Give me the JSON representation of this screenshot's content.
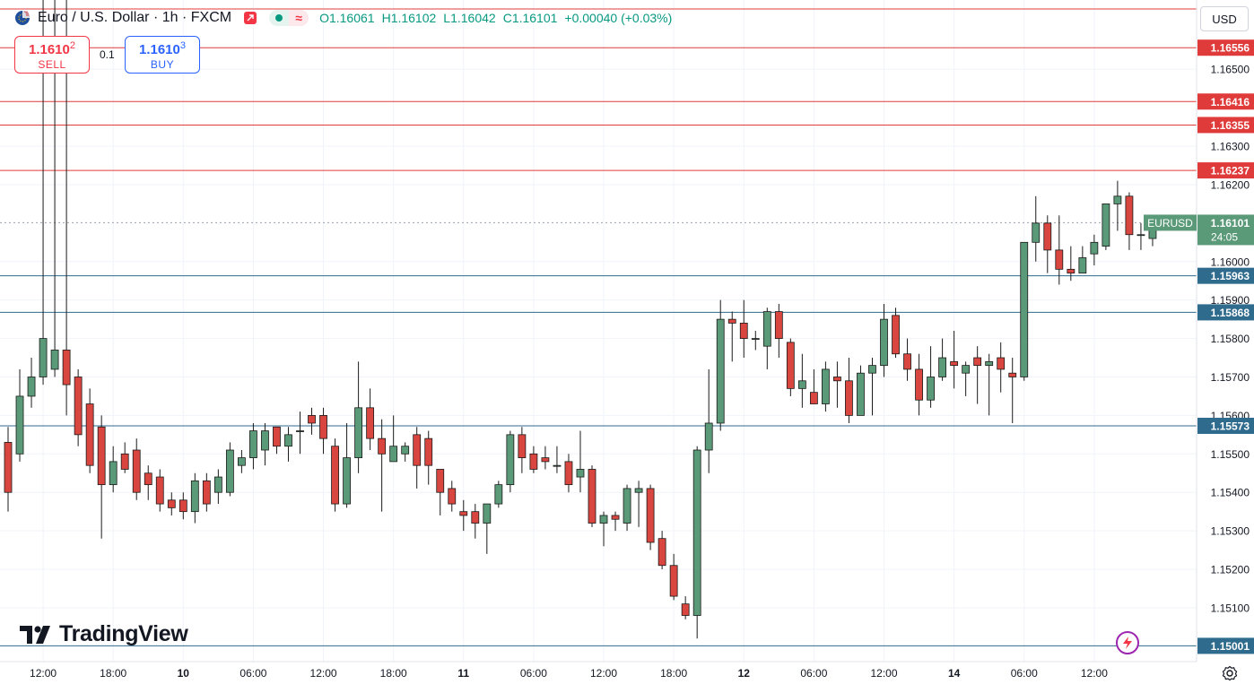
{
  "header": {
    "symbol": "Euro / U.S. Dollar",
    "interval": "1h",
    "exchange": "FXCM",
    "open": "O1.16061",
    "high": "H1.16102",
    "low": "L1.16042",
    "close": "C1.16101",
    "change": "+0.00040 (+0.03%)"
  },
  "trade": {
    "sell_price_main": "1.1610",
    "sell_price_sup": "2",
    "sell_label": "SELL",
    "spread": "0.1",
    "buy_price_main": "1.1610",
    "buy_price_sup": "3",
    "buy_label": "BUY"
  },
  "currency": "USD",
  "logo_text": "TradingView",
  "colors": {
    "up": "#5b9a78",
    "down": "#d9463f",
    "resistance": "#e03b3b",
    "support": "#2f6b8d",
    "grid": "#f0f3fa",
    "last_price": "#5b9a78"
  },
  "chart_data": {
    "type": "candlestick",
    "symbol_tag": "EURUSD",
    "last_price": 1.16101,
    "last_price_label": "1.16101",
    "countdown": "24:05",
    "y_range": [
      1.1496,
      1.1668
    ],
    "y_ticks": [
      "1.16500",
      "1.16300",
      "1.16200",
      "1.16000",
      "1.15900",
      "1.15800",
      "1.15700",
      "1.15600",
      "1.15500",
      "1.15400",
      "1.15300",
      "1.15200",
      "1.15100"
    ],
    "x_ticks": [
      {
        "label": "12:00",
        "bar": 3,
        "bold": false
      },
      {
        "label": "18:00",
        "bar": 9,
        "bold": false
      },
      {
        "label": "10",
        "bar": 15,
        "bold": true
      },
      {
        "label": "06:00",
        "bar": 21,
        "bold": false
      },
      {
        "label": "12:00",
        "bar": 27,
        "bold": false
      },
      {
        "label": "18:00",
        "bar": 33,
        "bold": false
      },
      {
        "label": "11",
        "bar": 39,
        "bold": true
      },
      {
        "label": "06:00",
        "bar": 45,
        "bold": false
      },
      {
        "label": "12:00",
        "bar": 51,
        "bold": false
      },
      {
        "label": "18:00",
        "bar": 57,
        "bold": false
      },
      {
        "label": "12",
        "bar": 63,
        "bold": true
      },
      {
        "label": "06:00",
        "bar": 69,
        "bold": false
      },
      {
        "label": "12:00",
        "bar": 75,
        "bold": false
      },
      {
        "label": "14",
        "bar": 81,
        "bold": true
      },
      {
        "label": "06:00",
        "bar": 87,
        "bold": false
      },
      {
        "label": "12:00",
        "bar": 93,
        "bold": false
      }
    ],
    "horizontal_levels": [
      {
        "value": 1.16556,
        "label": "1.16556",
        "kind": "resistance"
      },
      {
        "value": 1.16416,
        "label": "1.16416",
        "kind": "resistance"
      },
      {
        "value": 1.16355,
        "label": "1.16355",
        "kind": "resistance"
      },
      {
        "value": 1.16237,
        "label": "1.16237",
        "kind": "resistance"
      },
      {
        "value": 1.15963,
        "label": "1.15963",
        "kind": "support"
      },
      {
        "value": 1.15868,
        "label": "1.15868",
        "kind": "support"
      },
      {
        "value": 1.15573,
        "label": "1.15573",
        "kind": "support"
      },
      {
        "value": 1.15001,
        "label": "1.15001",
        "kind": "support"
      }
    ],
    "candles": [
      [
        1.1553,
        1.1557,
        1.1535,
        1.154
      ],
      [
        1.155,
        1.1572,
        1.1548,
        1.1565
      ],
      [
        1.1565,
        1.1575,
        1.1562,
        1.157
      ],
      [
        1.157,
        1.178,
        1.1568,
        1.158
      ],
      [
        1.1572,
        1.1776,
        1.157,
        1.1577
      ],
      [
        1.1577,
        1.178,
        1.156,
        1.1568
      ],
      [
        1.157,
        1.1572,
        1.1552,
        1.1555
      ],
      [
        1.1563,
        1.1567,
        1.1545,
        1.1547
      ],
      [
        1.1557,
        1.156,
        1.1528,
        1.1542
      ],
      [
        1.1542,
        1.1552,
        1.154,
        1.1548
      ],
      [
        1.155,
        1.1553,
        1.1545,
        1.1546
      ],
      [
        1.1551,
        1.1554,
        1.1538,
        1.154
      ],
      [
        1.1545,
        1.1547,
        1.1538,
        1.1542
      ],
      [
        1.1544,
        1.1546,
        1.1535,
        1.1537
      ],
      [
        1.1538,
        1.154,
        1.1534,
        1.1536
      ],
      [
        1.1538,
        1.154,
        1.1533,
        1.1535
      ],
      [
        1.1535,
        1.1545,
        1.1532,
        1.1543
      ],
      [
        1.1543,
        1.1545,
        1.1535,
        1.1537
      ],
      [
        1.154,
        1.1546,
        1.1537,
        1.1544
      ],
      [
        1.154,
        1.1553,
        1.1539,
        1.1551
      ],
      [
        1.1547,
        1.1551,
        1.1545,
        1.1549
      ],
      [
        1.1549,
        1.1558,
        1.1546,
        1.1556
      ],
      [
        1.1551,
        1.1558,
        1.1547,
        1.1556
      ],
      [
        1.1557,
        1.1557,
        1.155,
        1.1552
      ],
      [
        1.1552,
        1.1557,
        1.1548,
        1.1555
      ],
      [
        1.1556,
        1.1561,
        1.155,
        1.1556
      ],
      [
        1.156,
        1.1562,
        1.1555,
        1.1558
      ],
      [
        1.156,
        1.1562,
        1.155,
        1.1554
      ],
      [
        1.1552,
        1.1554,
        1.1535,
        1.1537
      ],
      [
        1.1537,
        1.1558,
        1.1536,
        1.1549
      ],
      [
        1.1549,
        1.1574,
        1.1545,
        1.1562
      ],
      [
        1.1562,
        1.1567,
        1.1551,
        1.1554
      ],
      [
        1.1554,
        1.1559,
        1.1535,
        1.155
      ],
      [
        1.1548,
        1.156,
        1.1548,
        1.1552
      ],
      [
        1.155,
        1.1553,
        1.1548,
        1.1552
      ],
      [
        1.1555,
        1.1557,
        1.1541,
        1.1547
      ],
      [
        1.1554,
        1.1556,
        1.1542,
        1.1547
      ],
      [
        1.1546,
        1.1546,
        1.1534,
        1.154
      ],
      [
        1.1541,
        1.1543,
        1.1535,
        1.1537
      ],
      [
        1.1535,
        1.1538,
        1.153,
        1.1534
      ],
      [
        1.1535,
        1.1537,
        1.1528,
        1.1532
      ],
      [
        1.1532,
        1.1536,
        1.1524,
        1.1537
      ],
      [
        1.1537,
        1.1543,
        1.1536,
        1.1542
      ],
      [
        1.1542,
        1.1556,
        1.154,
        1.1555
      ],
      [
        1.1555,
        1.1557,
        1.1545,
        1.1549
      ],
      [
        1.155,
        1.1552,
        1.1545,
        1.1546
      ],
      [
        1.1549,
        1.1552,
        1.1546,
        1.1548
      ],
      [
        1.1547,
        1.1552,
        1.1545,
        1.1547
      ],
      [
        1.1548,
        1.155,
        1.154,
        1.1542
      ],
      [
        1.1544,
        1.1556,
        1.154,
        1.1546
      ],
      [
        1.1546,
        1.1547,
        1.1531,
        1.1532
      ],
      [
        1.1532,
        1.1535,
        1.1526,
        1.1534
      ],
      [
        1.1534,
        1.1535,
        1.153,
        1.1533
      ],
      [
        1.1532,
        1.1542,
        1.153,
        1.1541
      ],
      [
        1.154,
        1.1543,
        1.1531,
        1.1541
      ],
      [
        1.1541,
        1.1542,
        1.1525,
        1.1527
      ],
      [
        1.1528,
        1.153,
        1.152,
        1.1521
      ],
      [
        1.1521,
        1.1524,
        1.1512,
        1.1513
      ],
      [
        1.1511,
        1.1513,
        1.1507,
        1.1508
      ],
      [
        1.1508,
        1.1552,
        1.1502,
        1.1551
      ],
      [
        1.1551,
        1.1572,
        1.1545,
        1.1558
      ],
      [
        1.1558,
        1.159,
        1.1556,
        1.1585
      ],
      [
        1.1585,
        1.1587,
        1.1574,
        1.1584
      ],
      [
        1.1584,
        1.159,
        1.1575,
        1.158
      ],
      [
        1.158,
        1.1582,
        1.1577,
        1.158
      ],
      [
        1.1578,
        1.1588,
        1.1572,
        1.1587
      ],
      [
        1.1587,
        1.1589,
        1.1575,
        1.158
      ],
      [
        1.1579,
        1.158,
        1.1565,
        1.1567
      ],
      [
        1.1567,
        1.1576,
        1.1562,
        1.1569
      ],
      [
        1.1566,
        1.1572,
        1.1563,
        1.1563
      ],
      [
        1.1563,
        1.1574,
        1.1561,
        1.1572
      ],
      [
        1.157,
        1.1574,
        1.1562,
        1.1569
      ],
      [
        1.1569,
        1.1575,
        1.1558,
        1.156
      ],
      [
        1.156,
        1.1573,
        1.156,
        1.1571
      ],
      [
        1.1571,
        1.1575,
        1.156,
        1.1573
      ],
      [
        1.1573,
        1.1589,
        1.157,
        1.1585
      ],
      [
        1.1586,
        1.1588,
        1.1575,
        1.1576
      ],
      [
        1.1576,
        1.158,
        1.1569,
        1.1572
      ],
      [
        1.1572,
        1.1576,
        1.156,
        1.1564
      ],
      [
        1.1564,
        1.1578,
        1.1562,
        1.157
      ],
      [
        1.157,
        1.158,
        1.1569,
        1.1575
      ],
      [
        1.1574,
        1.1582,
        1.1567,
        1.1573
      ],
      [
        1.1571,
        1.1574,
        1.1565,
        1.1573
      ],
      [
        1.1575,
        1.1578,
        1.1563,
        1.1573
      ],
      [
        1.1573,
        1.1576,
        1.156,
        1.1574
      ],
      [
        1.1575,
        1.1579,
        1.1566,
        1.1572
      ],
      [
        1.1571,
        1.1575,
        1.1558,
        1.157
      ],
      [
        1.157,
        1.1605,
        1.1569,
        1.1605
      ],
      [
        1.1605,
        1.1617,
        1.16,
        1.161
      ],
      [
        1.161,
        1.1612,
        1.1597,
        1.1603
      ],
      [
        1.1603,
        1.1612,
        1.1594,
        1.1598
      ],
      [
        1.1598,
        1.1604,
        1.1595,
        1.1597
      ],
      [
        1.1597,
        1.1604,
        1.1597,
        1.1601
      ],
      [
        1.1602,
        1.1607,
        1.1599,
        1.1605
      ],
      [
        1.1604,
        1.1615,
        1.1603,
        1.1615
      ],
      [
        1.1615,
        1.1621,
        1.1608,
        1.1617
      ],
      [
        1.1617,
        1.1618,
        1.1603,
        1.1607
      ],
      [
        1.1607,
        1.161,
        1.1603,
        1.1607
      ],
      [
        1.1606,
        1.161,
        1.1604,
        1.161
      ]
    ]
  }
}
